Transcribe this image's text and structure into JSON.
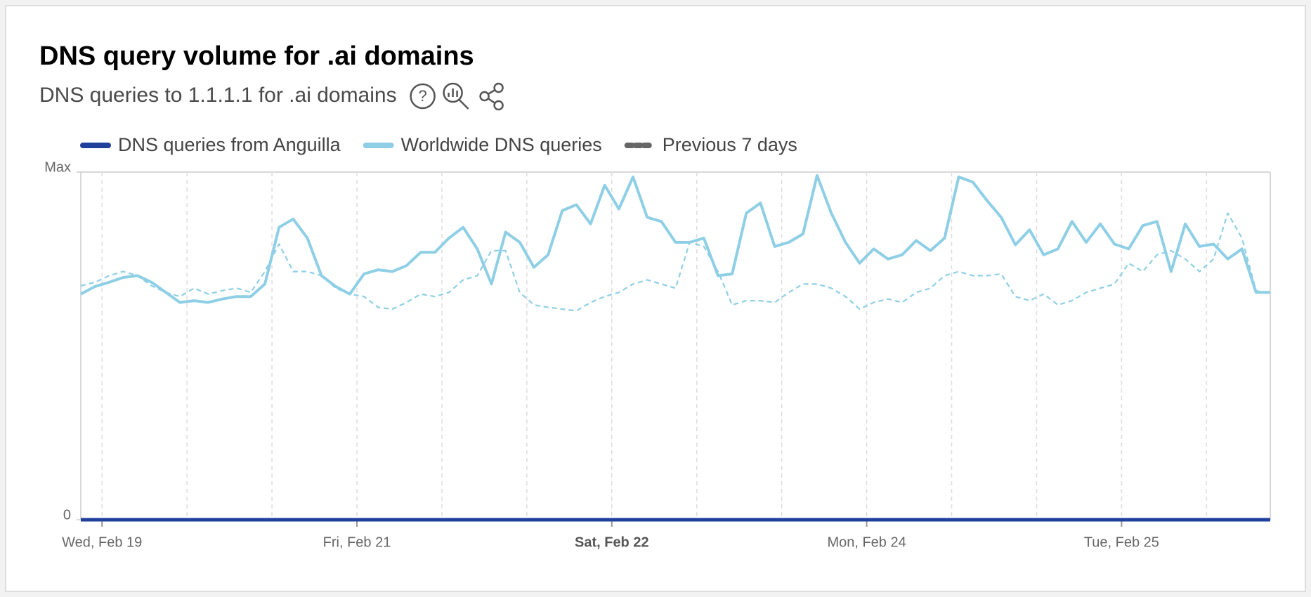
{
  "chart_data": {
    "type": "line",
    "title": "DNS query volume for .ai domains",
    "subtitle": "DNS queries to 1.1.1.1 for .ai domains",
    "x": [
      0,
      2,
      4,
      6,
      8,
      10,
      12,
      14,
      16,
      18,
      20,
      22,
      24,
      26,
      28,
      30,
      32,
      34,
      36,
      38,
      40,
      42,
      44,
      46,
      48,
      50,
      52,
      54,
      56,
      58,
      60,
      62,
      64,
      66,
      68,
      70,
      72,
      74,
      76,
      78,
      80,
      82,
      84,
      86,
      88,
      90,
      92,
      94,
      96,
      98,
      100,
      102,
      104,
      106,
      108,
      110,
      112,
      114,
      116,
      118,
      120,
      122,
      124,
      126,
      128,
      130,
      132,
      134,
      136,
      138,
      140,
      142,
      144,
      146,
      148,
      150,
      152,
      154,
      156,
      158,
      160,
      162,
      164,
      166,
      168
    ],
    "xlim": [
      0,
      168
    ],
    "xticks": [
      {
        "value": 3,
        "label": "Wed, Feb 19"
      },
      {
        "value": 39,
        "label": "Fri, Feb 21"
      },
      {
        "value": 75,
        "label": "Sat, Feb 22",
        "bold": true
      },
      {
        "value": 111,
        "label": "Mon, Feb 24"
      },
      {
        "value": 147,
        "label": "Tue, Feb 25"
      }
    ],
    "x_gridlines": [
      3,
      15,
      27,
      39,
      51,
      63,
      75,
      87,
      99,
      111,
      123,
      135,
      147,
      159
    ],
    "ylim": [
      0,
      1
    ],
    "yticks": [
      0,
      {
        "value": 1,
        "label": "Max"
      }
    ],
    "series": [
      {
        "name": "DNS queries from Anguilla",
        "color": "#1f3f9c",
        "legend_color": "#1f3f9c",
        "dash": false,
        "width": 5,
        "values": [
          0,
          0,
          0,
          0,
          0,
          0,
          0,
          0,
          0,
          0,
          0,
          0,
          0,
          0,
          0,
          0,
          0,
          0,
          0,
          0,
          0,
          0,
          0,
          0,
          0,
          0,
          0,
          0,
          0,
          0,
          0,
          0,
          0,
          0,
          0,
          0,
          0,
          0,
          0,
          0,
          0,
          0,
          0,
          0,
          0,
          0,
          0,
          0,
          0,
          0,
          0,
          0,
          0,
          0,
          0,
          0,
          0,
          0,
          0,
          0,
          0,
          0,
          0,
          0,
          0,
          0,
          0,
          0,
          0,
          0,
          0,
          0,
          0,
          0,
          0,
          0,
          0,
          0,
          0,
          0,
          0,
          0,
          0,
          0,
          0
        ]
      },
      {
        "name": "Worldwide DNS queries",
        "color": "#8ecfe6",
        "legend_color": "#8ecfe6",
        "dash": false,
        "width": 4,
        "values": [
          0.649,
          0.671,
          0.683,
          0.697,
          0.702,
          0.683,
          0.654,
          0.625,
          0.63,
          0.625,
          0.635,
          0.642,
          0.642,
          0.678,
          0.841,
          0.865,
          0.81,
          0.702,
          0.671,
          0.649,
          0.707,
          0.719,
          0.714,
          0.731,
          0.769,
          0.769,
          0.81,
          0.841,
          0.779,
          0.678,
          0.827,
          0.798,
          0.726,
          0.762,
          0.889,
          0.906,
          0.851,
          0.962,
          0.894,
          0.986,
          0.87,
          0.858,
          0.798,
          0.798,
          0.81,
          0.702,
          0.707,
          0.882,
          0.911,
          0.786,
          0.798,
          0.822,
          0.99,
          0.882,
          0.798,
          0.738,
          0.779,
          0.75,
          0.762,
          0.803,
          0.774,
          0.81,
          0.986,
          0.971,
          0.918,
          0.87,
          0.791,
          0.834,
          0.762,
          0.779,
          0.858,
          0.798,
          0.851,
          0.793,
          0.779,
          0.846,
          0.858,
          0.714,
          0.851,
          0.786,
          0.793,
          0.75,
          0.779,
          0.654,
          0.654
        ]
      },
      {
        "name": "Previous 7 days",
        "color": "#8ecfe6",
        "legend_color": "#666666",
        "dash": true,
        "width": 2.2,
        "values": [
          0.673,
          0.683,
          0.702,
          0.714,
          0.702,
          0.673,
          0.654,
          0.642,
          0.666,
          0.649,
          0.659,
          0.666,
          0.654,
          0.714,
          0.793,
          0.714,
          0.714,
          0.702,
          0.666,
          0.649,
          0.642,
          0.611,
          0.606,
          0.625,
          0.649,
          0.642,
          0.654,
          0.69,
          0.702,
          0.774,
          0.774,
          0.654,
          0.618,
          0.611,
          0.606,
          0.601,
          0.625,
          0.642,
          0.654,
          0.678,
          0.69,
          0.678,
          0.666,
          0.798,
          0.786,
          0.714,
          0.618,
          0.63,
          0.63,
          0.625,
          0.654,
          0.678,
          0.678,
          0.666,
          0.642,
          0.606,
          0.625,
          0.635,
          0.625,
          0.654,
          0.666,
          0.702,
          0.714,
          0.702,
          0.702,
          0.707,
          0.642,
          0.63,
          0.649,
          0.618,
          0.63,
          0.654,
          0.666,
          0.678,
          0.738,
          0.714,
          0.762,
          0.774,
          0.75,
          0.714,
          0.75,
          0.882,
          0.81,
          0.659,
          0.649
        ]
      }
    ]
  }
}
